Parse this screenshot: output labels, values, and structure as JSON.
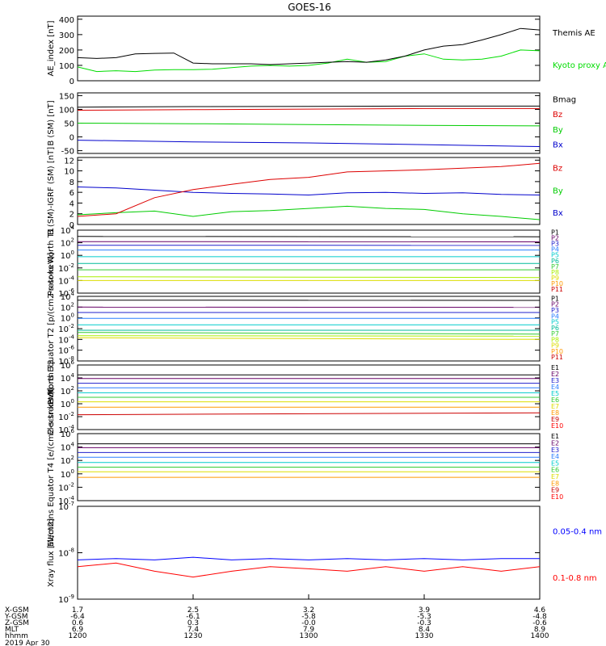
{
  "chart_data": [
    {
      "type": "line",
      "title": "GOES-16",
      "ylabel": "AE_index [nT]",
      "yticks": [
        "400",
        "300",
        "200",
        "100",
        "0"
      ],
      "ylim": [
        0,
        420
      ],
      "x": [
        1200,
        1205,
        1210,
        1215,
        1220,
        1225,
        1230,
        1235,
        1240,
        1245,
        1250,
        1255,
        1300,
        1305,
        1310,
        1315,
        1320,
        1325,
        1330,
        1335,
        1340,
        1345,
        1350,
        1355,
        1400
      ],
      "series": [
        {
          "name": "Kyoto proxy AE",
          "color": "#00dd00",
          "values": [
            90,
            60,
            65,
            60,
            70,
            72,
            72,
            75,
            85,
            95,
            100,
            95,
            100,
            115,
            140,
            120,
            125,
            160,
            175,
            140,
            135,
            140,
            160,
            200,
            195
          ]
        },
        {
          "name": "Themis AE",
          "color": "#000000",
          "values": [
            150,
            145,
            150,
            175,
            178,
            180,
            115,
            110,
            110,
            110,
            105,
            110,
            115,
            120,
            125,
            120,
            135,
            160,
            200,
            225,
            235,
            265,
            300,
            340,
            330
          ]
        }
      ]
    },
    {
      "type": "line",
      "ylabel": "B (SM) [nT]",
      "yticks": [
        "150",
        "100",
        "50",
        "0",
        "-50"
      ],
      "ylim": [
        -60,
        160
      ],
      "x": [
        1200,
        1230,
        1300,
        1330,
        1400
      ],
      "series": [
        {
          "name": "Bx",
          "color": "#0000cc",
          "values": [
            -12,
            -18,
            -22,
            -28,
            -35
          ]
        },
        {
          "name": "By",
          "color": "#00cc00",
          "values": [
            50,
            48,
            45,
            42,
            40
          ]
        },
        {
          "name": "Bz",
          "color": "#dd0000",
          "values": [
            97,
            99,
            101,
            103,
            103
          ]
        },
        {
          "name": "Bmag",
          "color": "#000000",
          "values": [
            108,
            110,
            111,
            112,
            112
          ]
        }
      ]
    },
    {
      "type": "line",
      "ylabel": "B (SM)-IGRF (SM) [nT]",
      "yticks": [
        "12",
        "10",
        "8",
        "6",
        "4",
        "2",
        "0"
      ],
      "ylim": [
        0,
        12.5
      ],
      "x": [
        1200,
        1210,
        1220,
        1230,
        1240,
        1250,
        1300,
        1310,
        1320,
        1330,
        1340,
        1350,
        1400
      ],
      "series": [
        {
          "name": "Bx",
          "color": "#0000cc",
          "values": [
            7.0,
            6.8,
            6.4,
            6.0,
            5.8,
            5.7,
            5.5,
            5.9,
            6.0,
            5.8,
            5.9,
            5.6,
            5.5
          ]
        },
        {
          "name": "By",
          "color": "#00cc00",
          "values": [
            1.8,
            2.2,
            2.5,
            1.5,
            2.4,
            2.6,
            3.0,
            3.4,
            3.0,
            2.8,
            2.0,
            1.5,
            0.9
          ]
        },
        {
          "name": "Bz",
          "color": "#dd0000",
          "values": [
            1.5,
            2.0,
            5.0,
            6.5,
            7.5,
            8.4,
            8.8,
            9.8,
            10.0,
            10.2,
            10.5,
            10.8,
            11.4
          ]
        }
      ]
    },
    {
      "type": "line",
      "ylabel": "Protons North T1",
      "yscale": "log",
      "yticks": [
        "10^4",
        "10^2",
        "10^0",
        "10^-2",
        "10^-4",
        "10^-6"
      ],
      "ylim": [
        1e-06,
        10000.0
      ],
      "legend": [
        "P1",
        "P2",
        "P3",
        "P4",
        "P5",
        "P6",
        "P7",
        "P8",
        "P9",
        "P10",
        "P11"
      ],
      "x": [
        1200,
        1400
      ],
      "series": [
        {
          "name": "P1",
          "color": "#000000",
          "values": [
            1000,
            900
          ]
        },
        {
          "name": "P2",
          "color": "#660066",
          "values": [
            150,
            140
          ]
        },
        {
          "name": "P3",
          "color": "#2020cc",
          "values": [
            40,
            38
          ]
        },
        {
          "name": "P4",
          "color": "#2a7fff",
          "values": [
            7,
            7
          ]
        },
        {
          "name": "P5",
          "color": "#00cccc",
          "values": [
            0.6,
            0.6
          ]
        },
        {
          "name": "P6",
          "color": "#00bb99",
          "values": [
            0.05,
            0.05
          ]
        },
        {
          "name": "P7",
          "color": "#33cc33",
          "values": [
            0.005,
            0.005
          ]
        },
        {
          "name": "P8",
          "color": "#aaee00",
          "values": [
            0.0004,
            0.0003
          ]
        },
        {
          "name": "P9",
          "color": "#dddd00",
          "values": [
            0.0001,
            0.0001
          ]
        },
        {
          "name": "P10",
          "color": "#ff9900",
          "values": [
            null,
            null
          ]
        },
        {
          "name": "P11",
          "color": "#cc0000",
          "values": [
            null,
            null
          ]
        }
      ]
    },
    {
      "type": "line",
      "ylabel": "Protons Equator T2 [p/(cm2-s-sr-keV)]",
      "yscale": "log",
      "yticks": [
        "10^4",
        "10^2",
        "10^0",
        "10^-2",
        "10^-4",
        "10^-6",
        "10^-8"
      ],
      "ylim": [
        1e-08,
        10000.0
      ],
      "legend": [
        "P1",
        "P2",
        "P3",
        "P4",
        "P5",
        "P6",
        "P7",
        "P8",
        "P9",
        "P10",
        "P11"
      ],
      "x": [
        1200,
        1400
      ],
      "series": [
        {
          "name": "P1",
          "color": "#000000",
          "values": [
            2000,
            1800
          ]
        },
        {
          "name": "P2",
          "color": "#660066",
          "values": [
            100,
            90
          ]
        },
        {
          "name": "P3",
          "color": "#2020cc",
          "values": [
            10,
            10
          ]
        },
        {
          "name": "P4",
          "color": "#2a7fff",
          "values": [
            0.8,
            0.8
          ]
        },
        {
          "name": "P5",
          "color": "#00cccc",
          "values": [
            0.05,
            0.05
          ]
        },
        {
          "name": "P6",
          "color": "#00bb99",
          "values": [
            0.005,
            0.005
          ]
        },
        {
          "name": "P7",
          "color": "#33cc33",
          "values": [
            0.002,
            0.001
          ]
        },
        {
          "name": "P8",
          "color": "#aaee00",
          "values": [
            0.0005,
            0.0004
          ]
        },
        {
          "name": "P9",
          "color": "#dddd00",
          "values": [
            0.0002,
            0.0001
          ]
        },
        {
          "name": "P10",
          "color": "#ff9900",
          "values": [
            null,
            null
          ]
        },
        {
          "name": "P11",
          "color": "#cc0000",
          "values": [
            null,
            null
          ]
        }
      ]
    },
    {
      "type": "line",
      "ylabel": "Electrons North T3",
      "yscale": "log",
      "yticks": [
        "10^6",
        "10^4",
        "10^2",
        "10^0",
        "10^-2",
        "10^-4"
      ],
      "ylim": [
        0.0001,
        1000000.0
      ],
      "legend": [
        "E1",
        "E2",
        "E3",
        "E4",
        "E5",
        "E6",
        "E7",
        "E8",
        "E9",
        "E10"
      ],
      "x": [
        1200,
        1400
      ],
      "series": [
        {
          "name": "E1",
          "color": "#000000",
          "values": [
            30000,
            30000
          ]
        },
        {
          "name": "E2",
          "color": "#660066",
          "values": [
            8000,
            8000
          ]
        },
        {
          "name": "E3",
          "color": "#2020cc",
          "values": [
            1500,
            1500
          ]
        },
        {
          "name": "E4",
          "color": "#2a7fff",
          "values": [
            300,
            300
          ]
        },
        {
          "name": "E5",
          "color": "#00cccc",
          "values": [
            50,
            50
          ]
        },
        {
          "name": "E6",
          "color": "#33cc33",
          "values": [
            10,
            10
          ]
        },
        {
          "name": "E7",
          "color": "#dddd00",
          "values": [
            2,
            2
          ]
        },
        {
          "name": "E8",
          "color": "#ff9900",
          "values": [
            0.3,
            0.3
          ]
        },
        {
          "name": "E9",
          "color": "#cc0000",
          "values": [
            0.02,
            0.04
          ]
        },
        {
          "name": "E10",
          "color": "#ff0000",
          "values": [
            null,
            null
          ]
        }
      ]
    },
    {
      "type": "line",
      "ylabel": "Electrons Equator T4 [e/(cm2-s-sr-keV)]",
      "yscale": "log",
      "yticks": [
        "10^6",
        "10^4",
        "10^2",
        "10^0",
        "10^-2",
        "10^-4"
      ],
      "ylim": [
        0.0001,
        1000000.0
      ],
      "legend": [
        "E1",
        "E2",
        "E3",
        "E4",
        "E5",
        "E6",
        "E7",
        "E8",
        "E9",
        "E10"
      ],
      "x": [
        1200,
        1400
      ],
      "series": [
        {
          "name": "E1",
          "color": "#000000",
          "values": [
            30000,
            30000
          ]
        },
        {
          "name": "E2",
          "color": "#660066",
          "values": [
            8000,
            8000
          ]
        },
        {
          "name": "E3",
          "color": "#2020cc",
          "values": [
            1500,
            1500
          ]
        },
        {
          "name": "E4",
          "color": "#2a7fff",
          "values": [
            300,
            300
          ]
        },
        {
          "name": "E5",
          "color": "#00cccc",
          "values": [
            50,
            50
          ]
        },
        {
          "name": "E6",
          "color": "#33cc33",
          "values": [
            10,
            10
          ]
        },
        {
          "name": "E7",
          "color": "#dddd00",
          "values": [
            2,
            2
          ]
        },
        {
          "name": "E8",
          "color": "#ff9900",
          "values": [
            0.3,
            0.3
          ]
        },
        {
          "name": "E9",
          "color": "#cc0000",
          "values": [
            null,
            null
          ]
        },
        {
          "name": "E10",
          "color": "#ff0000",
          "values": [
            null,
            null
          ]
        }
      ]
    },
    {
      "type": "line",
      "ylabel": "Xray flux [W/m2]",
      "yscale": "log",
      "yticks": [
        "10^-7",
        "10^-8",
        "10^-9"
      ],
      "ylim": [
        1e-09,
        1e-07
      ],
      "x": [
        1200,
        1210,
        1220,
        1230,
        1240,
        1250,
        1300,
        1310,
        1320,
        1330,
        1340,
        1350,
        1400
      ],
      "series": [
        {
          "name": "0.1-0.8 nm",
          "color": "#ff0000",
          "values": [
            5e-09,
            6e-09,
            4e-09,
            3e-09,
            4e-09,
            5e-09,
            4.5e-09,
            4e-09,
            5e-09,
            4e-09,
            5e-09,
            4e-09,
            5e-09
          ]
        },
        {
          "name": "0.05-0.4 nm",
          "color": "#0000ff",
          "values": [
            7e-09,
            7.5e-09,
            7e-09,
            8e-09,
            7e-09,
            7.5e-09,
            7e-09,
            7.5e-09,
            7e-09,
            7.5e-09,
            7e-09,
            7.5e-09,
            7.5e-09
          ]
        }
      ]
    }
  ],
  "time_axis": {
    "row_labels": [
      "X-GSM",
      "Y-GSM",
      "Z-GSM",
      "MLT",
      "hhmm",
      "2019 Apr 30"
    ],
    "columns": [
      {
        "xgsm": "1.7",
        "ygsm": "-6.4",
        "zgsm": "0.6",
        "mlt": "6.9",
        "hhmm": "1200"
      },
      {
        "xgsm": "2.5",
        "ygsm": "-6.1",
        "zgsm": "0.3",
        "mlt": "7.4",
        "hhmm": "1230"
      },
      {
        "xgsm": "3.2",
        "ygsm": "-5.8",
        "zgsm": "-0.0",
        "mlt": "7.9",
        "hhmm": "1300"
      },
      {
        "xgsm": "3.9",
        "ygsm": "-5.3",
        "zgsm": "-0.3",
        "mlt": "8.4",
        "hhmm": "1330"
      },
      {
        "xgsm": "4.6",
        "ygsm": "-4.8",
        "zgsm": "-0.6",
        "mlt": "8.9",
        "hhmm": "1400"
      }
    ]
  }
}
